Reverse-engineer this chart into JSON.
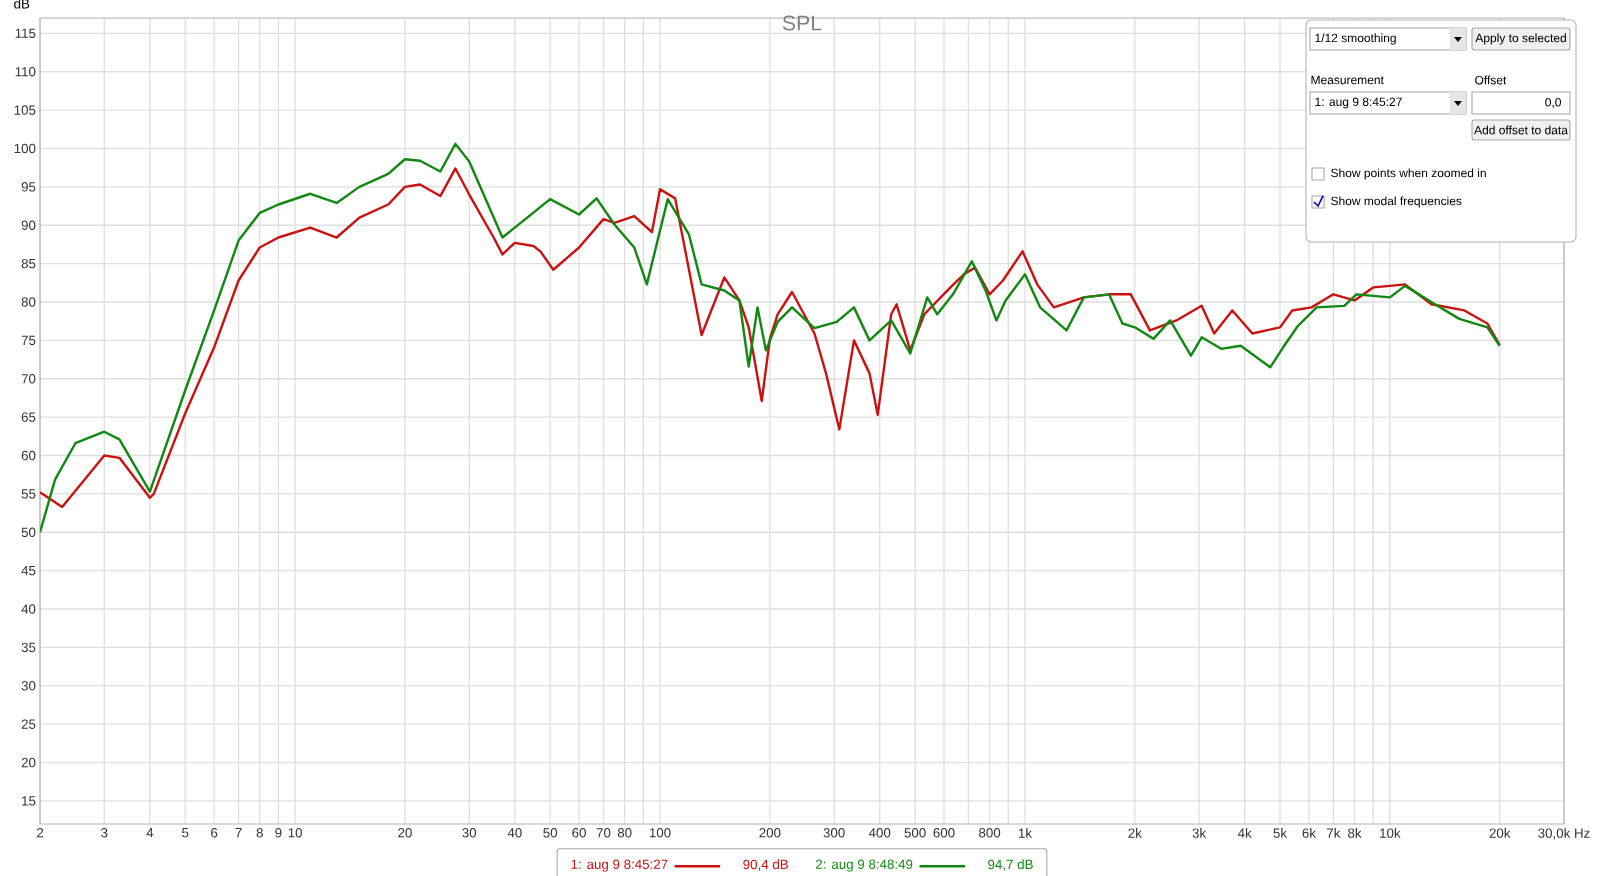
{
  "chart_data": {
    "type": "line",
    "title": "SPL",
    "ylabel": "dB",
    "log": "x",
    "grid": true,
    "legend": "bottom",
    "line_style": "solid",
    "xlim": [
      2,
      30000
    ],
    "ylim": [
      12,
      117
    ],
    "xticks": [
      2,
      3,
      4,
      5,
      6,
      7,
      8,
      9,
      10,
      20,
      30,
      40,
      50,
      60,
      70,
      80,
      {
        "value": 90,
        "label": null
      },
      100,
      200,
      300,
      400,
      500,
      600,
      {
        "value": 700,
        "label": null
      },
      800,
      {
        "value": 900,
        "label": null
      },
      {
        "value": 1000,
        "label": "1k"
      },
      {
        "value": 2000,
        "label": "2k"
      },
      {
        "value": 3000,
        "label": "3k"
      },
      {
        "value": 4000,
        "label": "4k"
      },
      {
        "value": 5000,
        "label": "5k"
      },
      {
        "value": 6000,
        "label": "6k"
      },
      {
        "value": 7000,
        "label": "7k"
      },
      {
        "value": 8000,
        "label": "8k"
      },
      {
        "value": 9000,
        "label": null
      },
      {
        "value": 10000,
        "label": "10k"
      },
      {
        "value": 20000,
        "label": "20k"
      },
      {
        "value": 30000,
        "label": "30,0k Hz"
      }
    ],
    "yticks": [
      15,
      20,
      25,
      30,
      35,
      40,
      45,
      50,
      55,
      60,
      65,
      70,
      75,
      80,
      85,
      90,
      95,
      100,
      105,
      110,
      115
    ],
    "annotations": [
      "90,4 dB",
      "94,7 dB",
      "1/12 smoothing",
      "Apply to selected",
      "Measurement",
      "1: aug 9 8:45:27",
      "Offset",
      "0,0",
      "Add offset to data",
      "Show points when zoomed in",
      "Show modal frequencies"
    ],
    "series": [
      {
        "name": "1: aug 9 8:45:27",
        "color": "#cc1111",
        "x": [
          2,
          2.3,
          3,
          3.3,
          4,
          4.1,
          5,
          6,
          7,
          8,
          9,
          11,
          13,
          15,
          18,
          20,
          22,
          25,
          27.5,
          30,
          35,
          37,
          40,
          45,
          47,
          51,
          60,
          70,
          75,
          85,
          95,
          100,
          110,
          130,
          150,
          165,
          175,
          190,
          200,
          210,
          230,
          265,
          285,
          310,
          340,
          375,
          395,
          430,
          445,
          485,
          530,
          625,
          680,
          730,
          800,
          870,
          985,
          1080,
          1200,
          1450,
          1700,
          1950,
          2200,
          2600,
          3050,
          3300,
          3700,
          4200,
          5000,
          5400,
          6100,
          7000,
          8000,
          9000,
          10000,
          11000,
          13000,
          16000,
          18500,
          20000
        ],
        "values": [
          55.2,
          53.3,
          60,
          59.7,
          54.5,
          55,
          65.5,
          74.1,
          82.8,
          87.1,
          88.4,
          89.7,
          88.4,
          91,
          92.7,
          95,
          95.3,
          93.8,
          97.4,
          94,
          88.4,
          86.2,
          87.7,
          87.3,
          86.6,
          84.2,
          87.1,
          90.8,
          90.3,
          91.2,
          89.1,
          94.7,
          93.5,
          75.7,
          83.2,
          80.2,
          76.7,
          67.1,
          75.2,
          78.4,
          81.3,
          75.9,
          70.7,
          63.4,
          75,
          70.7,
          65.3,
          78.4,
          79.7,
          73.7,
          78.4,
          81.9,
          83.6,
          84.5,
          81,
          82.8,
          86.6,
          82.3,
          79.3,
          80.6,
          81,
          81,
          76.3,
          77.6,
          79.5,
          75.9,
          78.9,
          75.9,
          76.7,
          78.9,
          79.3,
          81,
          80.2,
          81.9,
          82.1,
          82.3,
          79.7,
          78.9,
          77.2,
          74.4
        ]
      },
      {
        "name": "2: aug 9 8:48:49",
        "color": "#118811",
        "x": [
          2,
          2.2,
          2.5,
          3,
          3.3,
          4,
          5,
          6,
          7,
          8,
          9,
          11,
          13,
          15,
          18,
          20,
          22,
          25,
          27.5,
          30,
          37,
          42,
          50,
          60,
          67,
          75,
          85,
          92,
          105,
          120,
          130,
          150,
          165,
          175,
          185,
          195,
          210,
          230,
          265,
          305,
          340,
          375,
          430,
          485,
          540,
          575,
          635,
          715,
          780,
          835,
          885,
          1000,
          1100,
          1300,
          1450,
          1700,
          1850,
          2000,
          2250,
          2500,
          2850,
          3050,
          3450,
          3900,
          4700,
          5100,
          5600,
          6300,
          7500,
          8100,
          10000,
          11000,
          13500,
          15500,
          18500,
          20000
        ],
        "values": [
          50,
          56.9,
          61.6,
          63.1,
          62.1,
          55.3,
          68.5,
          78.9,
          88,
          91.6,
          92.7,
          94.1,
          92.9,
          95,
          96.7,
          98.6,
          98.4,
          97,
          100.6,
          98.3,
          88.4,
          90.5,
          93.4,
          91.4,
          93.5,
          90.1,
          87.1,
          82.3,
          93.4,
          88.8,
          82.3,
          81.5,
          80.2,
          71.6,
          79.3,
          73.7,
          77.4,
          79.3,
          76.6,
          77.4,
          79.3,
          75,
          77.6,
          73.3,
          80.6,
          78.4,
          81,
          85.3,
          81.5,
          77.6,
          80.2,
          83.6,
          79.3,
          76.3,
          80.6,
          81,
          77.2,
          76.7,
          75.2,
          77.6,
          73,
          75.4,
          73.9,
          74.3,
          71.5,
          74.1,
          76.9,
          79.3,
          79.5,
          81,
          80.6,
          82.1,
          79.5,
          77.8,
          76.7,
          74.3
        ]
      }
    ]
  }
}
